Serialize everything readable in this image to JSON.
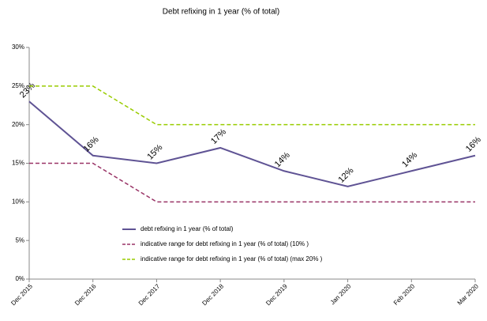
{
  "chart_data": {
    "type": "line",
    "title": "Debt refixing in 1 year (% of total)",
    "categories": [
      "Dec 2015",
      "Dec 2016",
      "Dec 2017",
      "Dec 2018",
      "Dec 2019",
      "Jan 2020",
      "Feb 2020",
      "Mar 2020"
    ],
    "series": [
      {
        "name": "debt refixing in 1 year (% of total)",
        "color": "#5f5394",
        "dash": false,
        "values": [
          23,
          16,
          15,
          17,
          14,
          12,
          14,
          16
        ],
        "value_labels": [
          "23%",
          "16%",
          "15%",
          "17%",
          "14%",
          "12%",
          "14%",
          "16%"
        ]
      },
      {
        "name": "indicative range for debt refixing in 1 year (% of total) (10% )",
        "color": "#993366",
        "dash": true,
        "values": [
          15,
          15,
          10,
          10,
          10,
          10,
          10,
          10
        ]
      },
      {
        "name": "indicative range for debt refixing in 1 year (% of total) (max 20% )",
        "color": "#99cc00",
        "dash": true,
        "values": [
          25,
          25,
          20,
          20,
          20,
          20,
          20,
          20
        ]
      }
    ],
    "ylim": [
      0,
      30
    ],
    "yticks": [
      {
        "value": 0,
        "label": "0%"
      },
      {
        "value": 5,
        "label": "5%"
      },
      {
        "value": 10,
        "label": "10%"
      },
      {
        "value": 15,
        "label": "15%"
      },
      {
        "value": 20,
        "label": "20%"
      },
      {
        "value": 25,
        "label": "25%"
      },
      {
        "value": 30,
        "label": "30%"
      }
    ],
    "grid": false
  }
}
